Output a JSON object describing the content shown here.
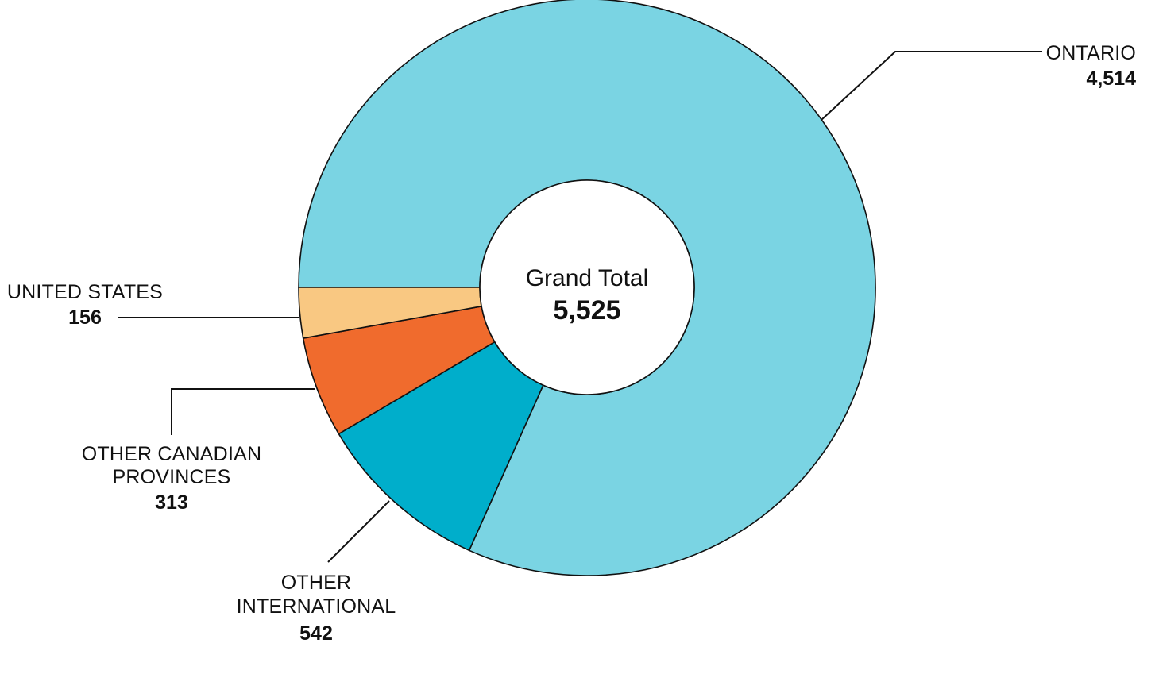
{
  "chart_data": {
    "type": "pie",
    "variant": "donut",
    "center": {
      "title": "Grand Total",
      "value": "5,525"
    },
    "slices": [
      {
        "name": "ONTARIO",
        "value": 4514,
        "value_label": "4,514",
        "color": "#7AD4E3"
      },
      {
        "name": "OTHER INTERNATIONAL",
        "value": 542,
        "value_label": "542",
        "color": "#00AECB"
      },
      {
        "name": "OTHER CANADIAN PROVINCES",
        "value": 313,
        "value_label": "313",
        "color": "#F06B2D"
      },
      {
        "name": "UNITED STATES",
        "value": 156,
        "value_label": "156",
        "color": "#F9C882"
      }
    ],
    "total": 5525,
    "legend": "none"
  }
}
